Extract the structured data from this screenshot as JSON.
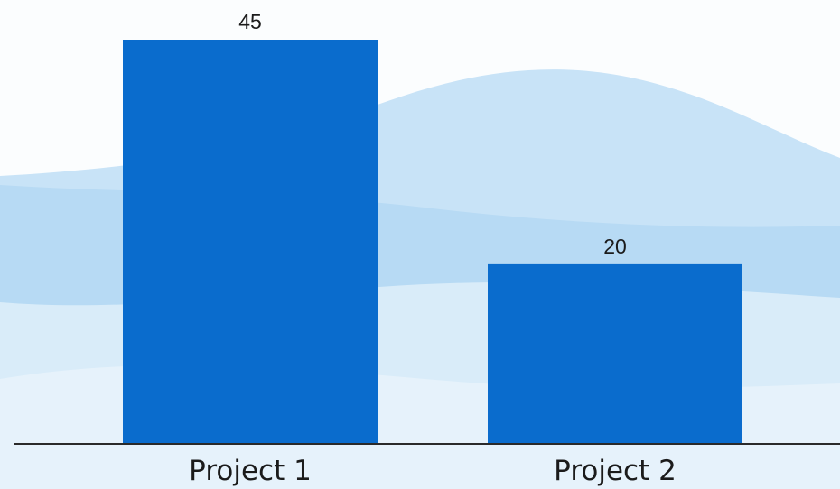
{
  "colors": {
    "bar": "#0a6ccd",
    "axis": "#2a2a2a",
    "wave_light": "#d9ecf9",
    "wave_mid": "#c2e0f6",
    "wave_dark": "#b3d8f3",
    "background": "#fbfdfe"
  },
  "chart_data": {
    "type": "bar",
    "categories": [
      "Project 1",
      "Project 2"
    ],
    "values": [
      45,
      20
    ],
    "value_labels": [
      "45",
      "20"
    ],
    "ylim": [
      0,
      45
    ],
    "grid": false,
    "legend": "none"
  }
}
